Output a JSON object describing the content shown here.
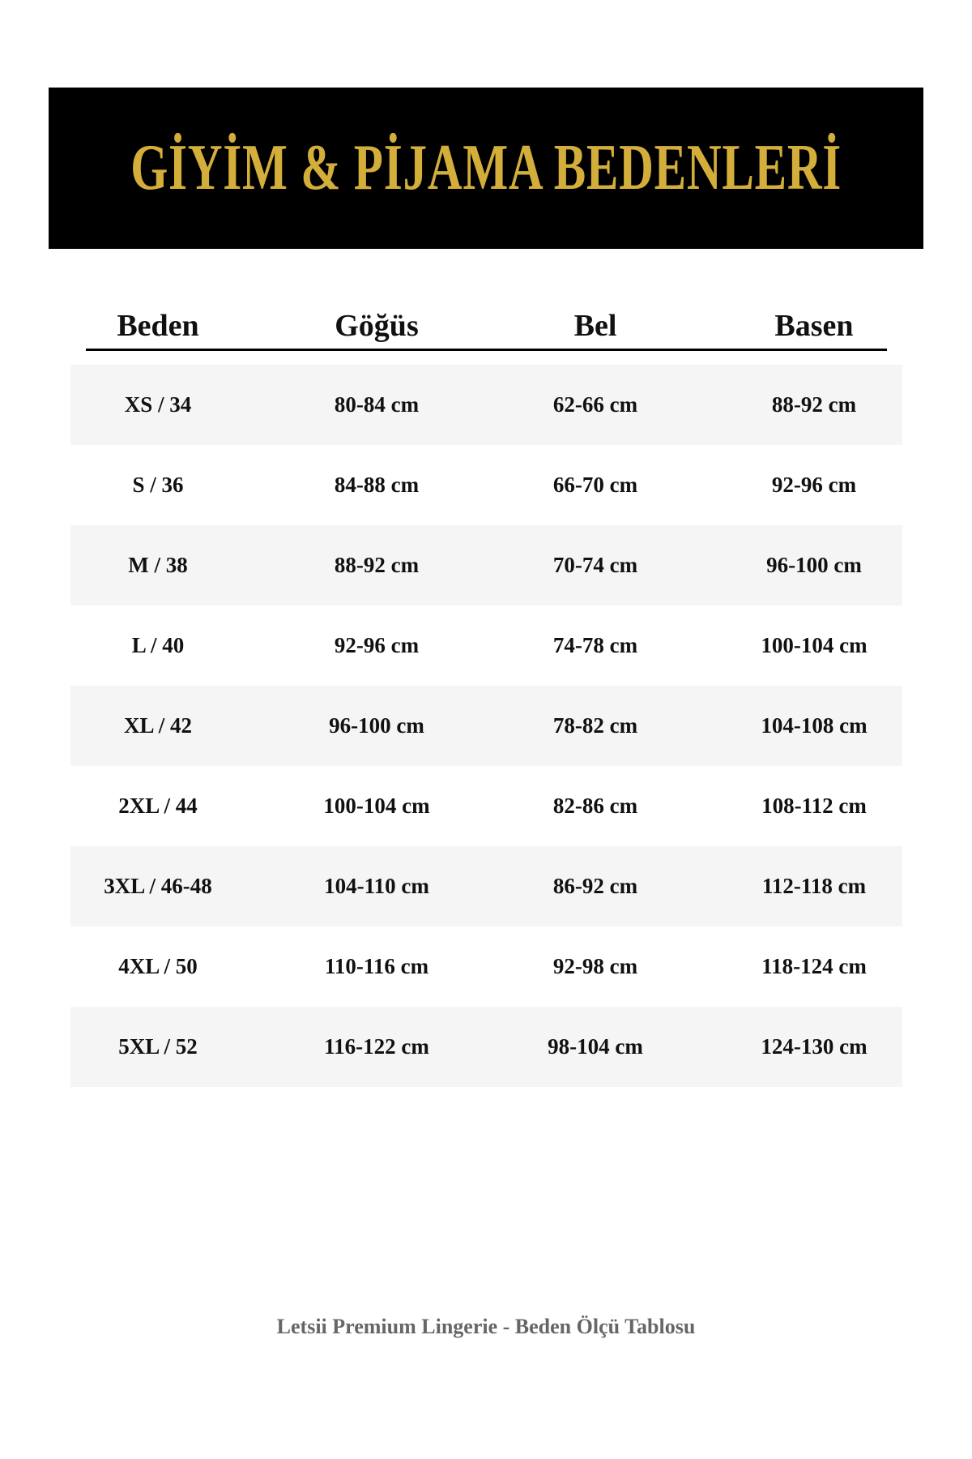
{
  "header": {
    "title": "GİYİM & PİJAMA BEDENLERİ",
    "accent_color": "#d4ae3a",
    "background_color": "#000000"
  },
  "table": {
    "columns": [
      "Beden",
      "Göğüs",
      "Bel",
      "Basen"
    ],
    "rows": [
      [
        "XS / 34",
        "80-84 cm",
        "62-66 cm",
        "88-92 cm"
      ],
      [
        "S / 36",
        "84-88 cm",
        "66-70 cm",
        "92-96 cm"
      ],
      [
        "M / 38",
        "88-92 cm",
        "70-74 cm",
        "96-100 cm"
      ],
      [
        "L / 40",
        "92-96 cm",
        "74-78 cm",
        "100-104 cm"
      ],
      [
        "XL / 42",
        "96-100 cm",
        "78-82 cm",
        "104-108 cm"
      ],
      [
        "2XL / 44",
        "100-104 cm",
        "82-86 cm",
        "108-112 cm"
      ],
      [
        "3XL / 46-48",
        "104-110 cm",
        "86-92 cm",
        "112-118 cm"
      ],
      [
        "4XL / 50",
        "110-116 cm",
        "92-98 cm",
        "118-124 cm"
      ],
      [
        "5XL / 52",
        "116-122 cm",
        "98-104 cm",
        "124-130 cm"
      ]
    ]
  },
  "footer": {
    "text": "Letsii Premium Lingerie - Beden Ölçü Tablosu"
  }
}
